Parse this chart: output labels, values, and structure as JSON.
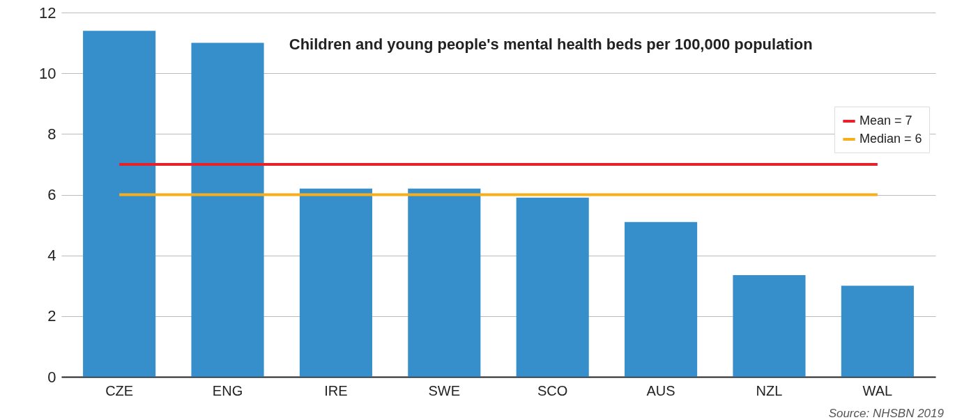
{
  "chart_data": {
    "type": "bar",
    "title": "Children and young people's mental health beds per 100,000 population",
    "categories": [
      "CZE",
      "ENG",
      "IRE",
      "SWE",
      "SCO",
      "AUS",
      "NZL",
      "WAL"
    ],
    "series": [
      {
        "color": "#368ecb",
        "values": [
          11.4,
          11.0,
          6.2,
          6.2,
          5.9,
          5.1,
          3.35,
          3.0
        ]
      },
      {
        "type": "line",
        "name": "Mean = 7",
        "color": "#e8202a",
        "values": [
          7,
          7,
          7,
          7,
          7,
          7,
          7,
          7
        ]
      },
      {
        "type": "line",
        "name": "Median = 6",
        "color": "#f6ae1c",
        "values": [
          6,
          6,
          6,
          6,
          6,
          6,
          6,
          6
        ]
      }
    ],
    "ylim": [
      0,
      12
    ],
    "yticks": [
      0,
      2,
      4,
      6,
      8,
      10,
      12
    ],
    "grid": "y",
    "legend": "top right",
    "annotations": [
      "Source: NHSBN 2019"
    ]
  }
}
